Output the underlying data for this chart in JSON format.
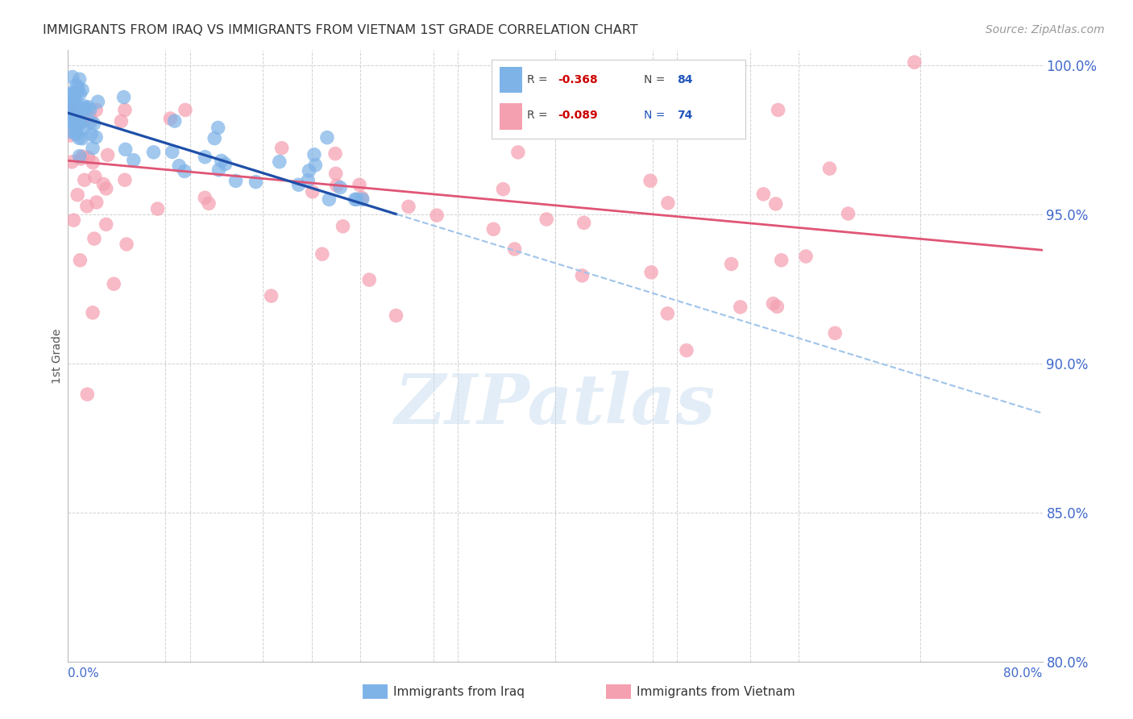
{
  "title": "IMMIGRANTS FROM IRAQ VS IMMIGRANTS FROM VIETNAM 1ST GRADE CORRELATION CHART",
  "source": "Source: ZipAtlas.com",
  "ylabel": "1st Grade",
  "xlim": [
    0.0,
    0.8
  ],
  "ylim": [
    0.8,
    1.005
  ],
  "yticks": [
    0.8,
    0.85,
    0.9,
    0.95,
    1.0
  ],
  "ytick_labels": [
    "80.0%",
    "85.0%",
    "90.0%",
    "95.0%",
    "100.0%"
  ],
  "xtick_labels": [
    "0.0%",
    "",
    "",
    "",
    "",
    "",
    "",
    "",
    "80.0%"
  ],
  "legend_R_iraq": "-0.368",
  "legend_N_iraq": "84",
  "legend_R_vietnam": "-0.089",
  "legend_N_vietnam": "74",
  "iraq_color": "#7EB3E8",
  "vietnam_color": "#F4A0B0",
  "iraq_line_color": "#1E4FA8",
  "vietnam_line_color": "#E05575",
  "dashed_line_color": "#A0C4EA",
  "watermark_text": "ZIPatlas",
  "background_color": "#ffffff",
  "grid_color": "#cccccc",
  "title_color": "#333333",
  "axis_label_color": "#4169CC",
  "bottom_legend_iraq": "Immigrants from Iraq",
  "bottom_legend_vietnam": "Immigrants from Vietnam"
}
